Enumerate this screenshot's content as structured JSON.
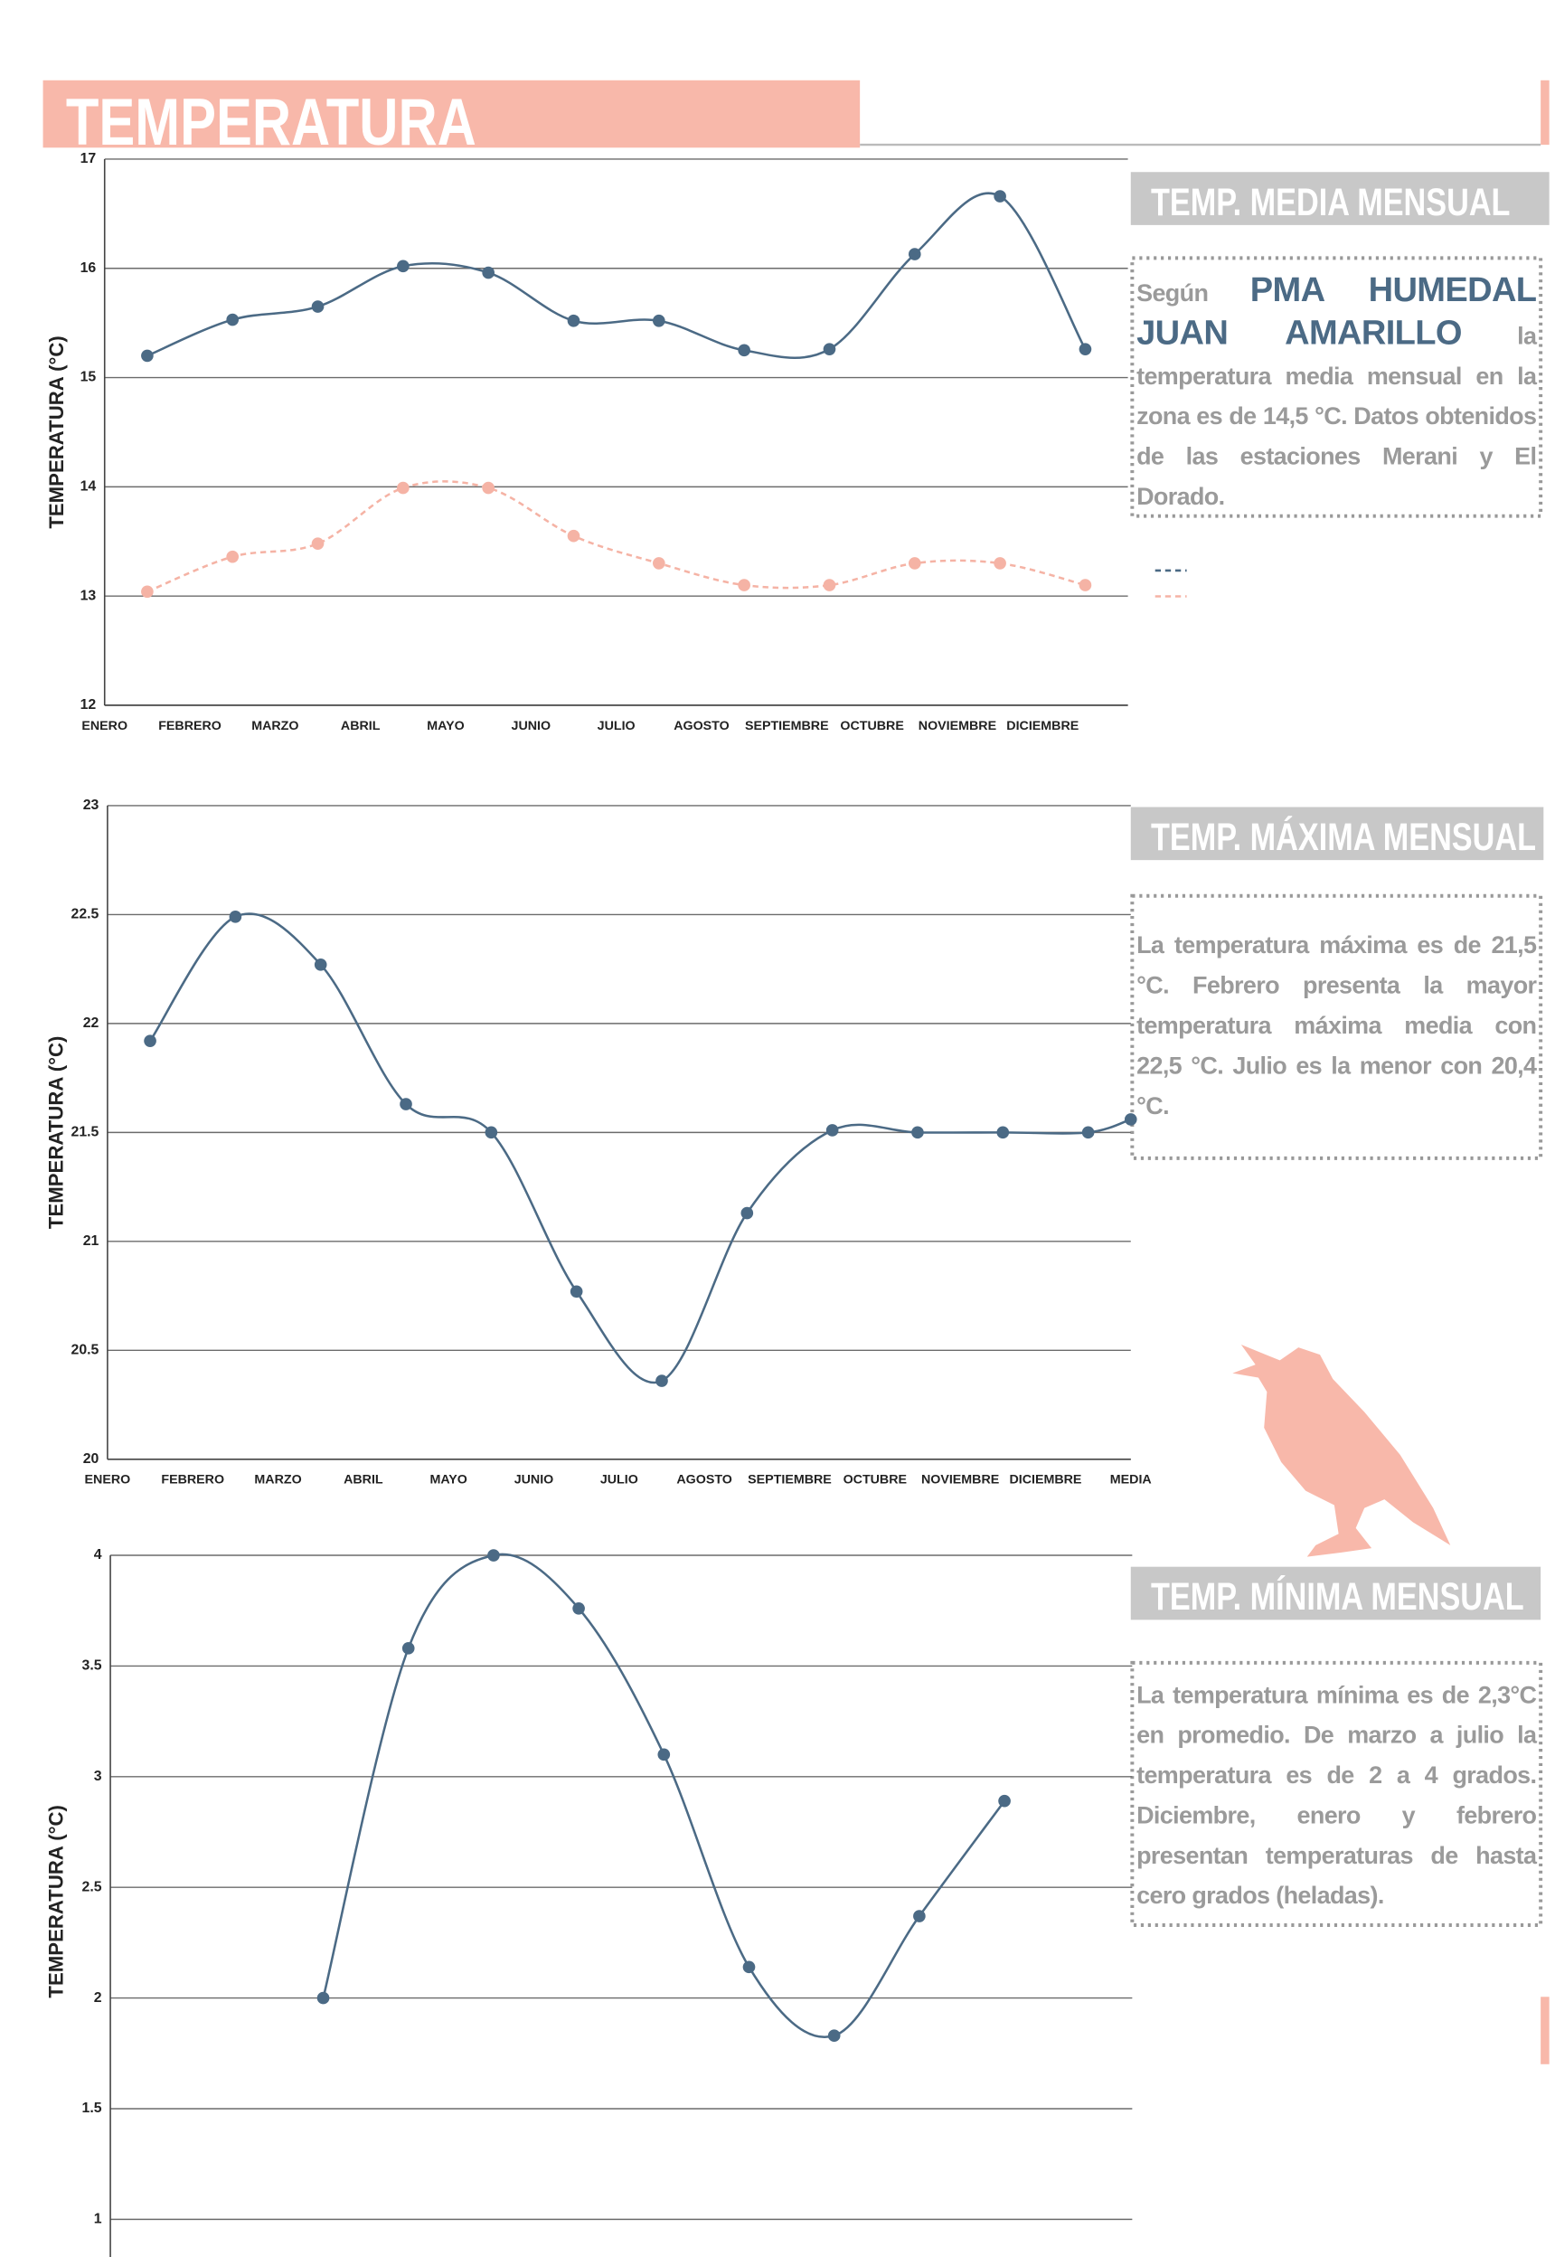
{
  "header": {
    "title": "TEMPERATURA"
  },
  "chart_data": [
    {
      "type": "line",
      "y_label": "TEMPERATURA (°C)",
      "categories": [
        "ENERO",
        "FEBRERO",
        "MARZO",
        "ABRIL",
        "MAYO",
        "JUNIO",
        "JULIO",
        "AGOSTO",
        "SEPTIEMBRE",
        "OCTUBRE",
        "NOVIEMBRE",
        "DICIEMBRE"
      ],
      "series": [
        {
          "color": "#4b6a85",
          "line_style": "solid",
          "values": [
            15.2,
            15.53,
            15.65,
            16.02,
            15.96,
            15.52,
            15.52,
            15.25,
            15.26,
            16.13,
            16.66,
            15.26
          ]
        },
        {
          "color": "#f5b3a5",
          "line_style": "dashed",
          "values": [
            13.04,
            13.36,
            13.48,
            13.99,
            13.99,
            13.55,
            13.3,
            13.1,
            13.1,
            13.3,
            13.3,
            13.1
          ]
        }
      ],
      "ylim": [
        12,
        17
      ],
      "yticks": [
        12,
        13,
        14,
        15,
        16,
        17
      ],
      "grid": true
    },
    {
      "type": "line",
      "y_label": "TEMPERATURA (°C)",
      "categories": [
        "ENERO",
        "FEBRERO",
        "MARZO",
        "ABRIL",
        "MAYO",
        "JUNIO",
        "JULIO",
        "AGOSTO",
        "SEPTIEMBRE",
        "OCTUBRE",
        "NOVIEMBRE",
        "DICIEMBRE",
        "MEDIA"
      ],
      "series": [
        {
          "color": "#4b6a85",
          "line_style": "solid",
          "values": [
            21.92,
            22.49,
            22.27,
            21.63,
            21.5,
            20.77,
            20.36,
            21.13,
            21.51,
            21.5,
            21.5,
            21.5,
            21.56
          ]
        }
      ],
      "ylim": [
        20,
        23
      ],
      "yticks": [
        20,
        20.5,
        21,
        21.5,
        22,
        22.5,
        23
      ],
      "grid": true
    },
    {
      "type": "line",
      "y_label": "TEMPERATURA (°C)",
      "categories": [
        null,
        null,
        null,
        null,
        null,
        null,
        null,
        null,
        null,
        null,
        null,
        null,
        null
      ],
      "series": [
        {
          "color": "#4b6a85",
          "line_style": "solid",
          "values": [
            null,
            null,
            2.0,
            3.58,
            4.0,
            3.76,
            3.1,
            2.14,
            1.83,
            2.37,
            2.89,
            null,
            null
          ]
        }
      ],
      "ylim": [
        0.83,
        4
      ],
      "yticks": [
        1,
        1.5,
        2,
        2.5,
        3,
        3.5,
        4
      ],
      "grid": true
    }
  ],
  "sections": [
    {
      "title": "TEMP. MEDIA MENSUAL",
      "intro": "Según",
      "highlight": "PMA HUMEDAL JUAN AMARILLO",
      "text": "la temperatura media mensual en la zona es de 14,5 °C. Datos obtenidos de las estaciones Merani y El Dorado."
    },
    {
      "title": "TEMP. MÁXIMA MENSUAL",
      "text": "La temperatura máxima es de 21,5 °C. Febrero presenta la mayor temperatura máxima media con 22,5 °C. Julio es la menor con 20,4 °C."
    },
    {
      "title": "TEMP. MÍNIMA MENSUAL",
      "text": "La temperatura mínima es de 2,3°C en promedio. De marzo a julio la temperatura es de 2 a 4 grados. Diciembre, enero y febrero presentan temperaturas de hasta cero grados (heladas)."
    }
  ]
}
